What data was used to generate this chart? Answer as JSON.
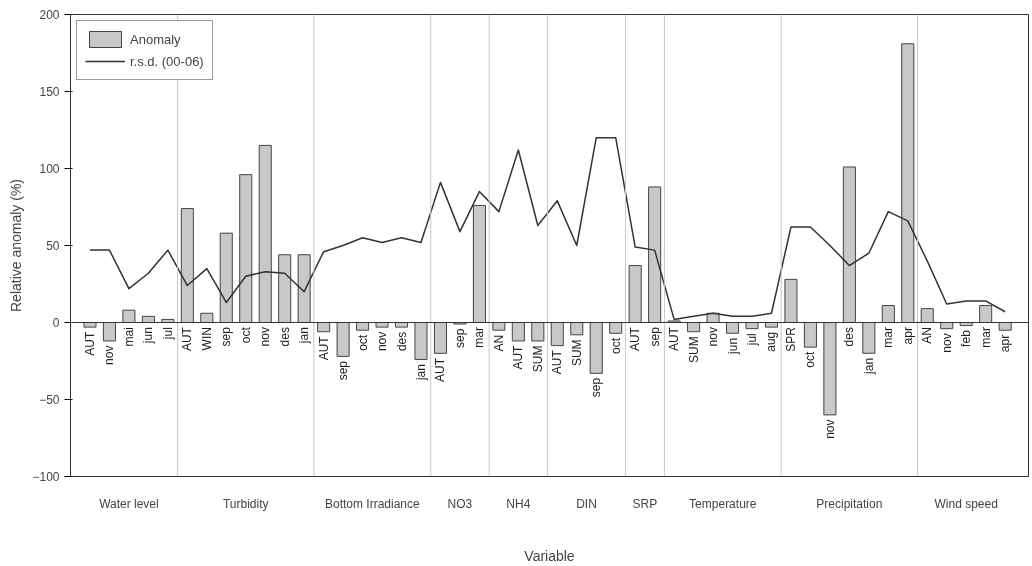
{
  "chart_data": {
    "type": "bar",
    "xlabel": "Variable",
    "ylabel": "Relative anomaly (%)",
    "categories": [
      "AUT",
      "nov",
      "mai",
      "jun",
      "jul",
      "AUT",
      "WIN",
      "sep",
      "oct",
      "nov",
      "des",
      "jan",
      "AUT",
      "sep",
      "oct",
      "nov",
      "des",
      "jan",
      "AUT",
      "sep",
      "mar",
      "AN",
      "AUT",
      "SUM",
      "AUT",
      "SUM",
      "sep",
      "oct",
      "AUT",
      "sep",
      "AUT",
      "SUM",
      "nov",
      "jun",
      "jul",
      "aug",
      "SPR",
      "oct",
      "nov",
      "des",
      "jan",
      "mar",
      "apr",
      "AN",
      "nov",
      "feb",
      "mar",
      "apr"
    ],
    "series": [
      {
        "name": "Anomaly",
        "type": "bar",
        "color": "#c8c8c8",
        "values": [
          -3,
          -12,
          8,
          4,
          2,
          74,
          6,
          58,
          96,
          115,
          44,
          44,
          -6,
          -22,
          -5,
          -3,
          -3,
          -24,
          -20,
          -1,
          76,
          -5,
          -12,
          -12,
          -15,
          -8,
          -33,
          -7,
          37,
          88,
          1,
          -6,
          6,
          -7,
          -4,
          -3,
          28,
          -16,
          -60,
          101,
          -20,
          11,
          181,
          9,
          -4,
          -2,
          11,
          -5
        ]
      },
      {
        "name": "r.s.d. (00-06)",
        "type": "line",
        "color": "#333333",
        "values": [
          47,
          47,
          22,
          32,
          47,
          24,
          35,
          13,
          30,
          33,
          32,
          20,
          46,
          50,
          55,
          52,
          55,
          52,
          91,
          59,
          85,
          72,
          112,
          63,
          79,
          50,
          120,
          120,
          49,
          47,
          2,
          4,
          6,
          4,
          4,
          6,
          62,
          62,
          50,
          37,
          45,
          72,
          66,
          40,
          12,
          14,
          14,
          7
        ]
      }
    ],
    "ylim": [
      -100,
      200
    ],
    "yticks": [
      -100,
      -50,
      0,
      50,
      100,
      150,
      200
    ],
    "annotations": [
      "Water level",
      "Turbidity",
      "Bottom Irradiance",
      "NO3",
      "NH4",
      "DIN",
      "SRP",
      "Temperature",
      "Precipitation",
      "Wind speed"
    ],
    "legend": "top left",
    "grid": false
  }
}
